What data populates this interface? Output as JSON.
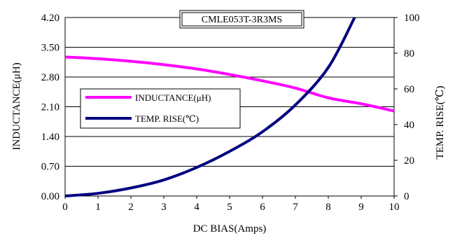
{
  "chart_data": {
    "type": "line",
    "title": "CMLE053T-3R3MS",
    "xlabel": "DC BIAS(Amps)",
    "ylabel_left": "INDUCTANCE(μH)",
    "ylabel_right": "TEMP. RISE(℃)",
    "xlim": [
      0,
      10
    ],
    "ylim_left": [
      0,
      4.2
    ],
    "ylim_right": [
      0,
      100
    ],
    "x_ticks": [
      "0",
      "1",
      "2",
      "3",
      "4",
      "5",
      "6",
      "7",
      "8",
      "9",
      "10"
    ],
    "y_left_ticks": [
      "0.00",
      "0.70",
      "1.40",
      "2.10",
      "2.80",
      "3.50",
      "4.20"
    ],
    "y_right_ticks": [
      "0",
      "20",
      "40",
      "60",
      "80",
      "100"
    ],
    "grid": "horizontal",
    "legend_position": "left-middle",
    "series": [
      {
        "name": "INDUCTANCE(μH)",
        "axis": "left",
        "color": "#ff00ff",
        "x": [
          0,
          1,
          2,
          3,
          4,
          5,
          6,
          7,
          8,
          9,
          10
        ],
        "values": [
          3.27,
          3.23,
          3.17,
          3.09,
          2.99,
          2.86,
          2.71,
          2.54,
          2.31,
          2.17,
          2.0
        ]
      },
      {
        "name": "TEMP. RISE(℃)",
        "axis": "right",
        "color": "#000080",
        "x": [
          0,
          1,
          2,
          3,
          4,
          5,
          6,
          7,
          8,
          8.8
        ],
        "values": [
          0,
          1.5,
          4.5,
          9,
          16,
          25,
          36,
          51,
          72,
          100
        ]
      }
    ]
  }
}
